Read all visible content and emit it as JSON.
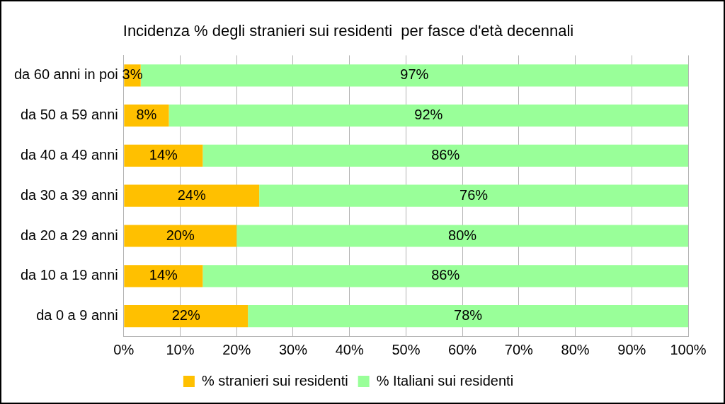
{
  "chart_data": {
    "type": "bar",
    "title": "Incidenza % degli stranieri sui residenti  per fasce d'età decennali",
    "orientation": "horizontal",
    "stacked": true,
    "data_labels": true,
    "grid": true,
    "legend": "bottom",
    "categories": [
      "da 60 anni in poi",
      "da 50 a 59 anni",
      "da 40 a 49 anni",
      "da 30 a 39 anni",
      "da 20 a 29 anni",
      "da 10 a 19 anni",
      "da 0 a 9 anni"
    ],
    "series": [
      {
        "name": "% stranieri sui residenti",
        "color": "#ffc000",
        "values": [
          3,
          8,
          14,
          24,
          20,
          14,
          22
        ],
        "value_labels": [
          "3%",
          "8%",
          "14%",
          "24%",
          "20%",
          "14%",
          "22%"
        ]
      },
      {
        "name": "% Italiani sui residenti",
        "color": "#99ff99",
        "values": [
          97,
          92,
          86,
          76,
          80,
          86,
          78
        ],
        "value_labels": [
          "97%",
          "92%",
          "86%",
          "76%",
          "80%",
          "86%",
          "78%"
        ]
      }
    ],
    "xlim": [
      0,
      100
    ],
    "xticks": [
      {
        "value": 0,
        "label": "0%"
      },
      {
        "value": 10,
        "label": "10%"
      },
      {
        "value": 20,
        "label": "20%"
      },
      {
        "value": 30,
        "label": "30%"
      },
      {
        "value": 40,
        "label": "40%"
      },
      {
        "value": 50,
        "label": "50%"
      },
      {
        "value": 60,
        "label": "60%"
      },
      {
        "value": 70,
        "label": "70%"
      },
      {
        "value": 80,
        "label": "80%"
      },
      {
        "value": 90,
        "label": "90%"
      },
      {
        "value": 100,
        "label": "100%"
      }
    ]
  }
}
